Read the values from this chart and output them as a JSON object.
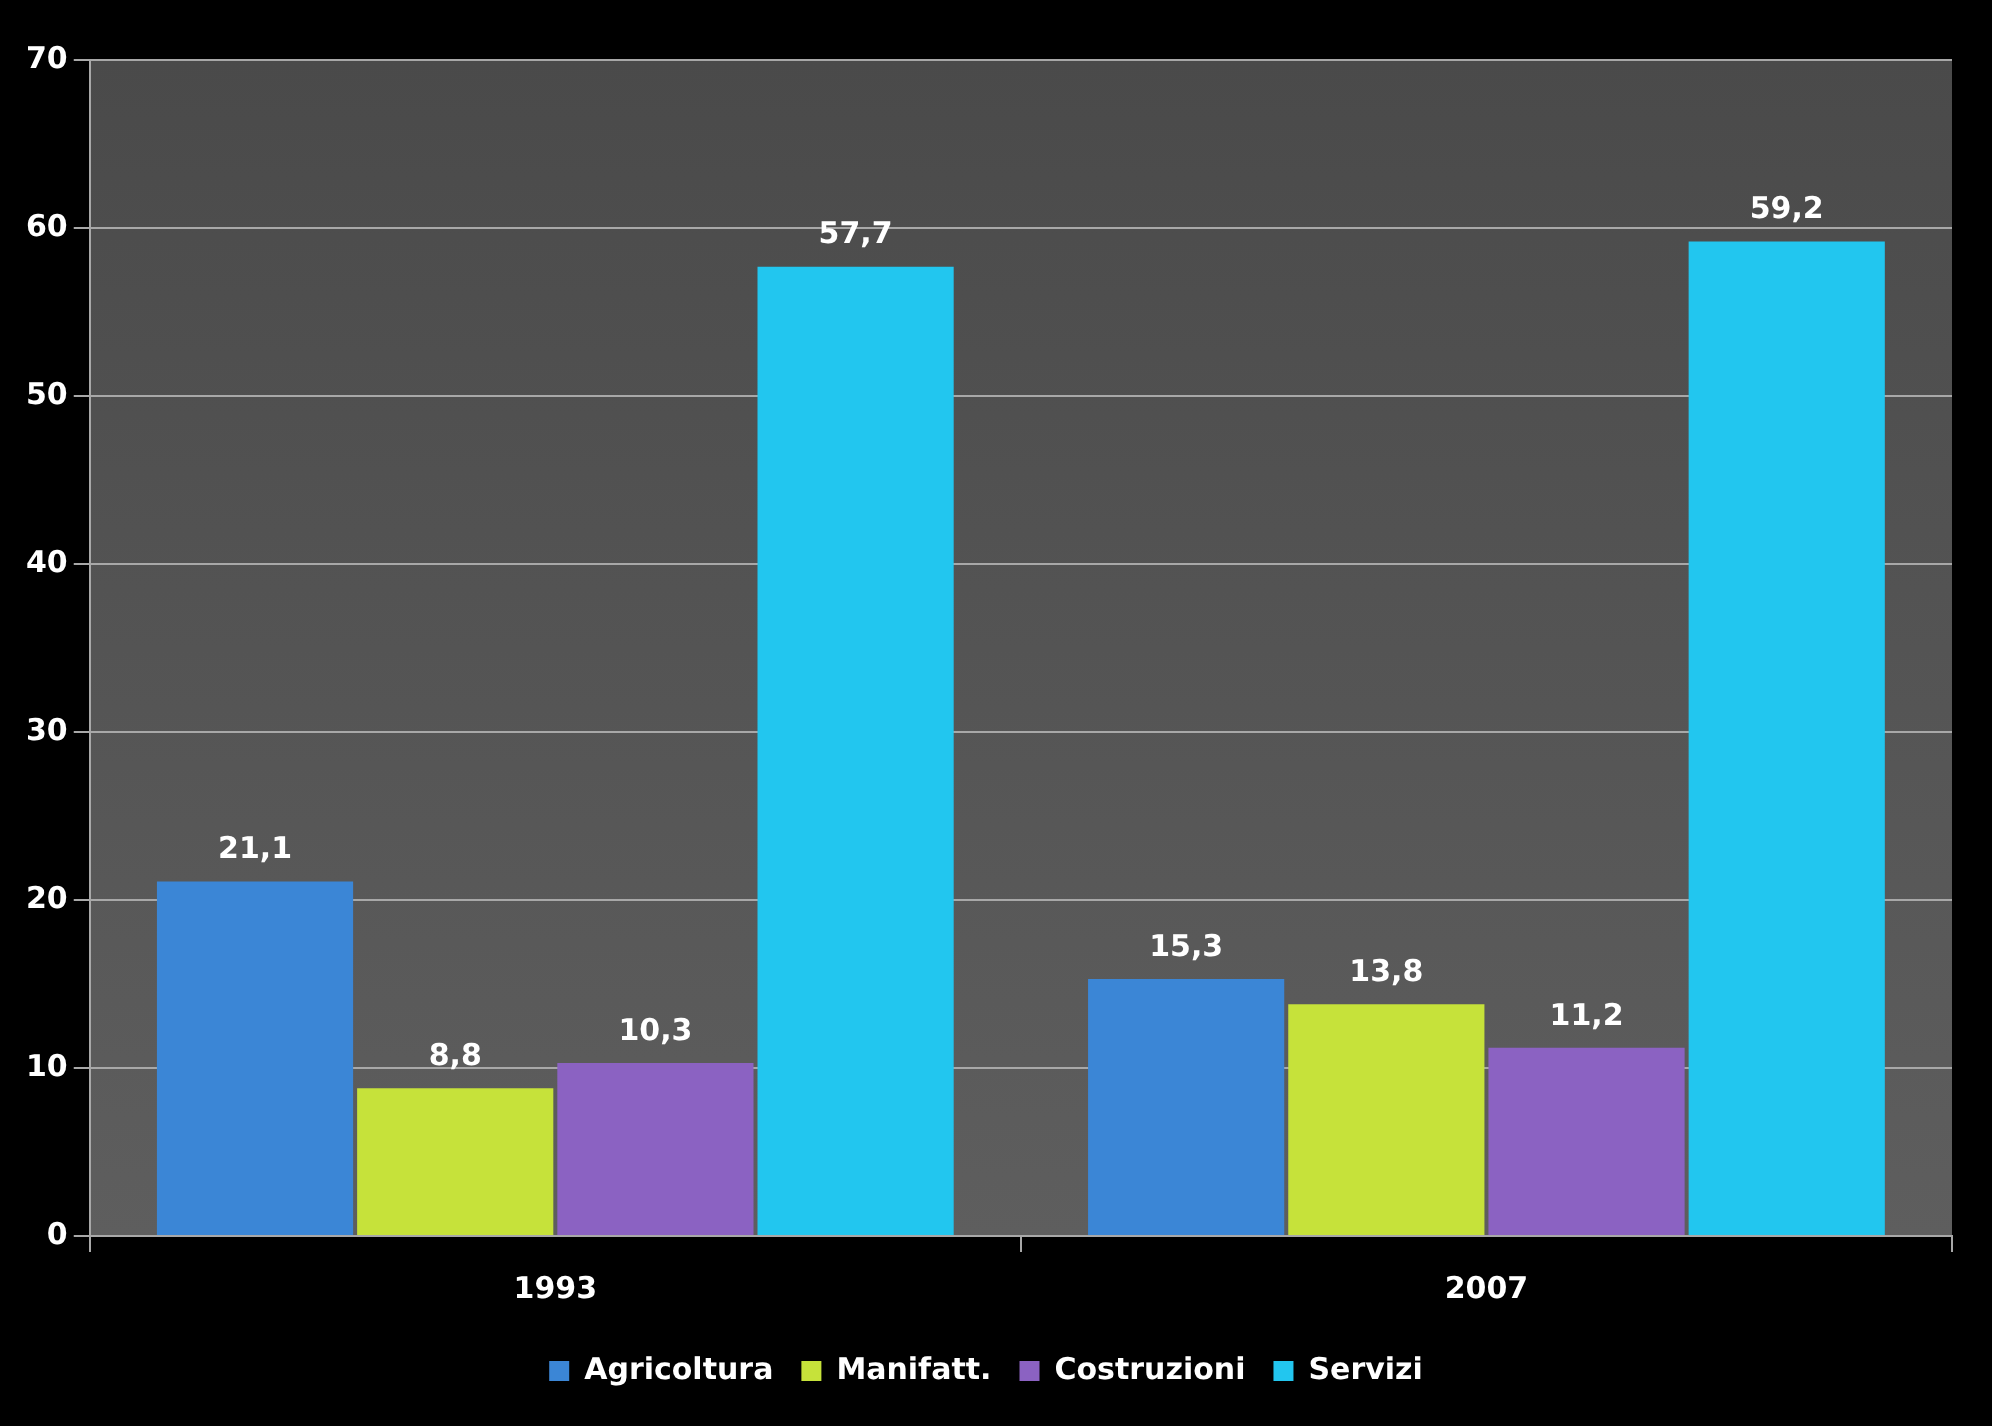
{
  "chart_data": {
    "type": "bar",
    "categories": [
      "1993",
      "2007"
    ],
    "series": [
      {
        "name": "Agricoltura",
        "color": "#3b86d6",
        "values": [
          21.1,
          15.3
        ],
        "value_labels": [
          "21,1",
          "15,3"
        ]
      },
      {
        "name": "Manifatt.",
        "color": "#c6e23a",
        "values": [
          8.8,
          13.8
        ],
        "value_labels": [
          "8,8",
          "13,8"
        ]
      },
      {
        "name": "Costruzioni",
        "color": "#8b62c2",
        "values": [
          10.3,
          11.2
        ],
        "value_labels": [
          "10,3",
          "11,2"
        ]
      },
      {
        "name": "Servizi",
        "color": "#22c6ef",
        "values": [
          57.7,
          59.2
        ],
        "value_labels": [
          "57,7",
          "59,2"
        ]
      }
    ],
    "ylim": [
      0,
      70
    ],
    "yticks": [
      0,
      10,
      20,
      30,
      40,
      50,
      60,
      70
    ],
    "grid": "y",
    "legend": "bottom"
  }
}
